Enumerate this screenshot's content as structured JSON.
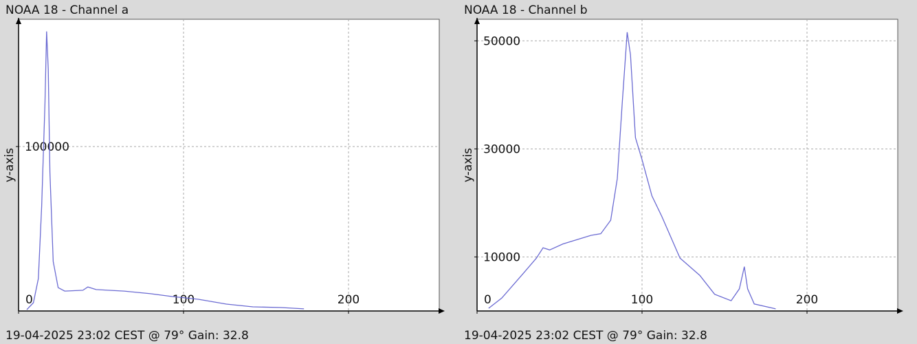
{
  "chart_data": [
    {
      "type": "line",
      "title": "NOAA 18 - Channel a",
      "y_label": "y-axis",
      "footer": "19-04-2025 23:02 CEST @ 79° Gain: 32.8",
      "x": [
        5,
        9,
        12,
        14,
        16,
        17,
        18,
        19,
        21,
        24,
        28,
        39,
        42,
        47,
        64,
        80,
        93,
        109,
        126,
        142,
        159,
        173
      ],
      "values": [
        800,
        5000,
        19700,
        63600,
        126000,
        170000,
        147000,
        84500,
        30100,
        14200,
        12100,
        12600,
        14600,
        13000,
        12100,
        10500,
        8800,
        7100,
        4200,
        2500,
        2100,
        1300
      ],
      "color": "#6a6ad2",
      "xlim": [
        0,
        255
      ],
      "xticks": [
        0,
        100,
        200
      ],
      "ylim": [
        0,
        177400
      ],
      "yticks": [
        100000
      ],
      "grid": true
    },
    {
      "type": "line",
      "title": "NOAA 18 - Channel b",
      "y_label": "y-axis",
      "footer": "19-04-2025 23:02 CEST @ 79° Gain: 32.8",
      "x": [
        7,
        15,
        27,
        36,
        40,
        44,
        52,
        69,
        75,
        81,
        85,
        88,
        91,
        93,
        96,
        100,
        106,
        112,
        123,
        135,
        144,
        154,
        159,
        162,
        164,
        168,
        181
      ],
      "values": [
        500,
        2400,
        6600,
        9800,
        11700,
        11300,
        12400,
        14000,
        14300,
        16800,
        24500,
        38500,
        51600,
        47400,
        32100,
        28000,
        21300,
        17500,
        9800,
        6600,
        3100,
        1900,
        4100,
        8200,
        4100,
        1300,
        400
      ],
      "color": "#6a6ad2",
      "xlim": [
        0,
        255
      ],
      "xticks": [
        0,
        100,
        200
      ],
      "ylim": [
        0,
        54000
      ],
      "yticks": [
        10000,
        30000,
        50000
      ],
      "grid": true
    }
  ]
}
